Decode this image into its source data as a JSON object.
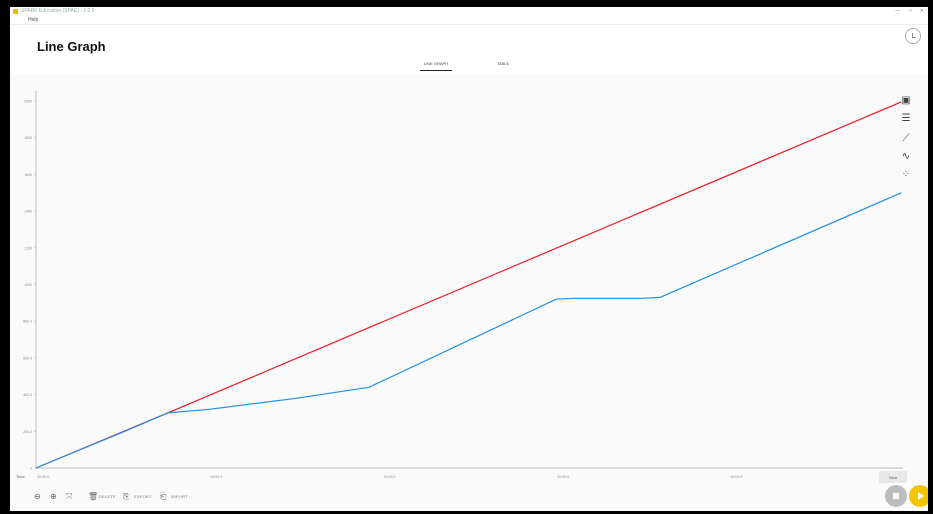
{
  "window": {
    "title": "SPARK Education (SPAE) - 1.2.0",
    "controls": [
      "—",
      "□",
      "✕"
    ]
  },
  "menu": {
    "help_label": "Help"
  },
  "header": {
    "page_title": "Line Graph",
    "tabs": [
      {
        "label": "LINE GRAPH",
        "active": true
      },
      {
        "label": "TABLE",
        "active": false
      }
    ]
  },
  "legend": [
    {
      "color": "#1e90e6",
      "icon": "series-dot"
    },
    {
      "color": "#ee1c25",
      "icon": "series-dot"
    }
  ],
  "toolbar": {
    "delete_label": "DELETE",
    "export_label": "EXPORT",
    "import_label": "IMPORT",
    "now_label": "Now"
  },
  "side_tools": [
    "graph-view-icon",
    "table-view-icon",
    "line-chart-icon",
    "smooth-line-icon",
    "scatter-icon"
  ],
  "chart_data": {
    "type": "line",
    "xlabel": "Time",
    "x_tick_labels": [
      "00:00:0",
      "00:00:1",
      "00:00:2",
      "00:00:3",
      "00:00:4"
    ],
    "x_ticks": [
      0,
      1,
      2,
      3,
      4
    ],
    "xlim": [
      0,
      5
    ],
    "y_tick_labels": [
      "0",
      "200.0",
      "400.0",
      "600.0",
      "800.0",
      "1000",
      "1200",
      "1400",
      "1600",
      "1800",
      "2000"
    ],
    "y_ticks": [
      0,
      200,
      400,
      600,
      800,
      1000,
      1200,
      1400,
      1600,
      1800,
      2000
    ],
    "ylim": [
      0,
      2000
    ],
    "grid": false,
    "series": [
      {
        "color": "#ee1c25",
        "x": [
          0,
          0.76,
          4.99
        ],
        "y": [
          0,
          300,
          1995
        ]
      },
      {
        "color": "#1e90e6",
        "x": [
          0,
          0.5,
          0.76,
          1.0,
          1.5,
          1.92,
          3.0,
          3.1,
          3.5,
          3.6,
          4.99
        ],
        "y": [
          0,
          195,
          300,
          320,
          380,
          440,
          920,
          925,
          925,
          930,
          1500
        ]
      }
    ]
  }
}
